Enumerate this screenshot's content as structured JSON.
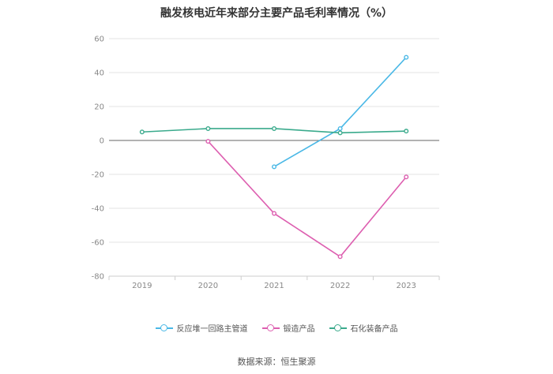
{
  "chart_data": {
    "type": "line",
    "title": "融发核电近年来部分主要产品毛利率情况（%）",
    "categories": [
      "2019",
      "2020",
      "2021",
      "2022",
      "2023"
    ],
    "ylim": [
      -80,
      60
    ],
    "yticks": [
      60,
      40,
      20,
      0,
      -20,
      -40,
      -60,
      -80
    ],
    "grid": true,
    "legend_position": "bottom",
    "series": [
      {
        "name": "反应堆一回路主管道",
        "color": "#4ab8e6",
        "values": [
          null,
          null,
          -15.5,
          7.0,
          49.0
        ]
      },
      {
        "name": "锻造产品",
        "color": "#dd5fb0",
        "values": [
          null,
          -0.5,
          -43.0,
          -68.5,
          -21.5
        ]
      },
      {
        "name": "石化装备产品",
        "color": "#3aaa8c",
        "values": [
          5.0,
          7.0,
          7.0,
          4.5,
          5.5
        ]
      }
    ]
  },
  "source": "数据来源：恒生聚源"
}
